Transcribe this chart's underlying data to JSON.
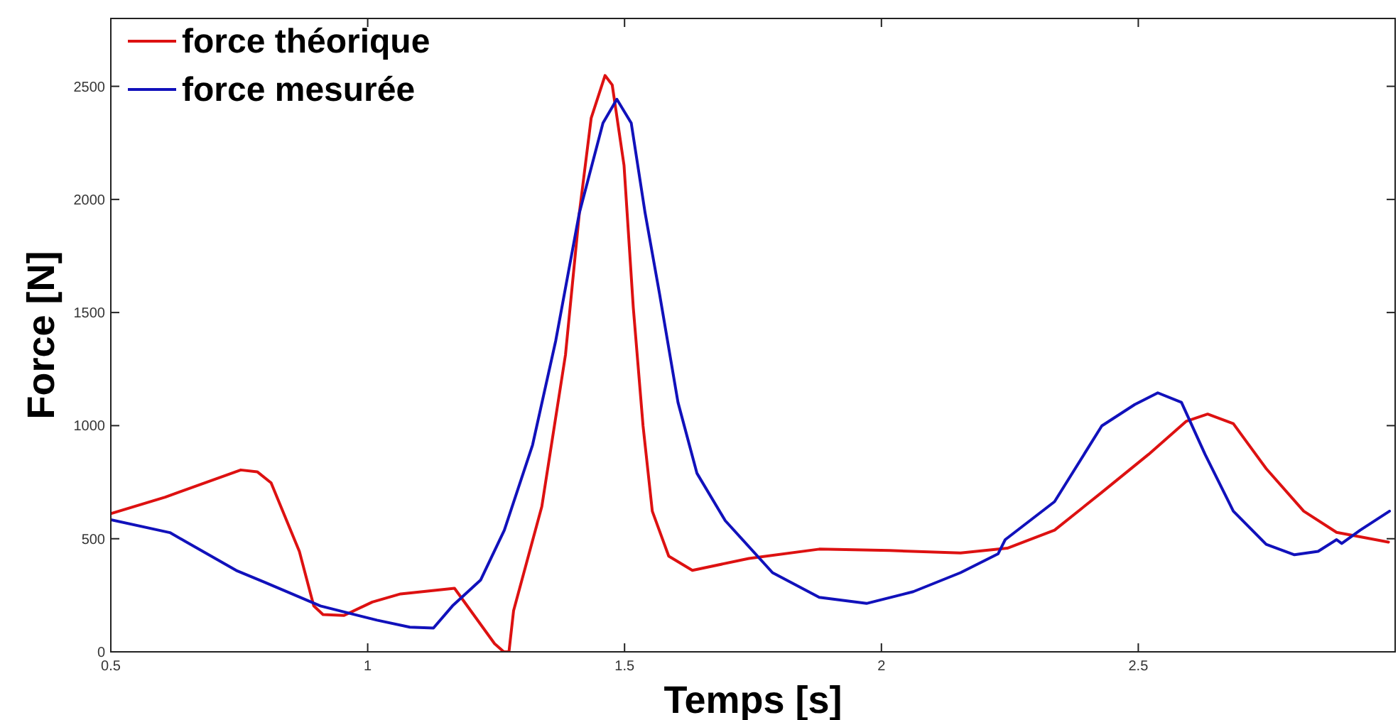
{
  "chart_data": {
    "type": "line",
    "xlabel": "Temps [s]",
    "ylabel": "Force [N]",
    "xlim": [
      0.5,
      3
    ],
    "ylim": [
      0,
      2800
    ],
    "xticks": [
      0.5,
      1,
      1.5,
      2,
      2.5
    ],
    "yticks": [
      0,
      500,
      1000,
      1500,
      2000,
      2500
    ],
    "grid": false,
    "legend": "top left",
    "line_style": "solid",
    "marker": "none",
    "series": [
      {
        "name": "force théorique",
        "color": "#dd1111",
        "x": [
          0.5,
          0.606,
          0.753,
          0.785,
          0.812,
          0.867,
          0.895,
          0.913,
          0.954,
          1.009,
          1.064,
          1.169,
          1.247,
          1.265,
          1.275,
          1.284,
          1.339,
          1.385,
          1.412,
          1.435,
          1.462,
          1.476,
          1.499,
          1.517,
          1.536,
          1.554,
          1.586,
          1.632,
          1.742,
          1.879,
          2.016,
          2.154,
          2.245,
          2.337,
          2.429,
          2.52,
          2.593,
          2.635,
          2.685,
          2.749,
          2.822,
          2.886,
          2.987
        ],
        "values": [
          611,
          684,
          804,
          796,
          747,
          444,
          203,
          165,
          161,
          220,
          256,
          281,
          36,
          0,
          0,
          182,
          643,
          1313,
          1940,
          2359,
          2548,
          2506,
          2150,
          1522,
          999,
          622,
          423,
          360,
          413,
          454,
          448,
          437,
          458,
          538,
          705,
          873,
          1019,
          1051,
          1009,
          810,
          622,
          528,
          485
        ]
      },
      {
        "name": "force mesurée",
        "color": "#1111bb",
        "x": [
          0.5,
          0.615,
          0.744,
          0.799,
          0.908,
          1.018,
          1.082,
          1.128,
          1.165,
          1.22,
          1.266,
          1.321,
          1.366,
          1.412,
          1.458,
          1.485,
          1.513,
          1.54,
          1.568,
          1.604,
          1.641,
          1.696,
          1.788,
          1.879,
          1.971,
          2.062,
          2.154,
          2.227,
          2.241,
          2.337,
          2.429,
          2.493,
          2.538,
          2.584,
          2.63,
          2.685,
          2.749,
          2.804,
          2.85,
          2.886,
          2.896,
          2.932,
          2.989
        ],
        "values": [
          584,
          527,
          360,
          308,
          203,
          140,
          109,
          105,
          203,
          318,
          538,
          915,
          1375,
          1940,
          2338,
          2443,
          2338,
          1940,
          1584,
          1103,
          789,
          580,
          350,
          241,
          214,
          266,
          350,
          433,
          496,
          664,
          999,
          1093,
          1145,
          1103,
          873,
          622,
          475,
          429,
          444,
          496,
          479,
          538,
          622
        ]
      }
    ]
  }
}
